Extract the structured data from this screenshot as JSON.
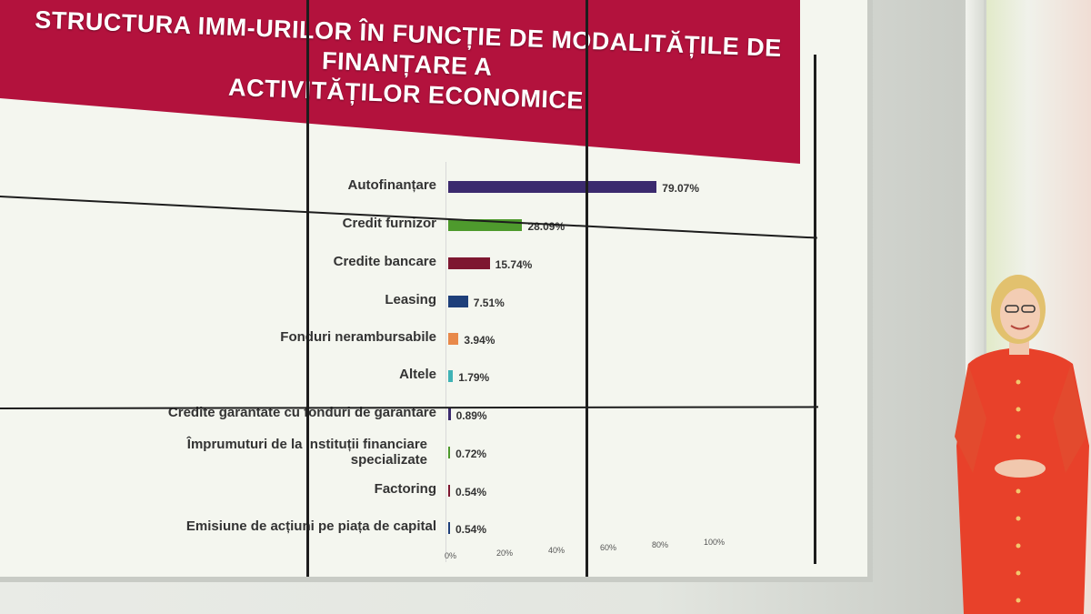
{
  "chart_data": {
    "type": "bar",
    "orientation": "horizontal",
    "title": "STRUCTURA IMM-URILOR ÎN FUNCȚIE DE MODALITĂȚILE DE FINANȚARE A ACTIVITĂȚILOR ECONOMICE",
    "title_lines": [
      "STRUCTURA IMM-URILOR ÎN FUNCȚIE DE MODALITĂȚILE DE FINANȚARE A",
      "ACTIVITĂȚILOR ECONOMICE"
    ],
    "categories": [
      "Autofinanțare",
      "Credit furnizor",
      "Credite bancare",
      "Leasing",
      "Fonduri nerambursabile",
      "Altele",
      "Credite garantate cu fonduri de garantare",
      "Împrumuturi de la instituții financiare specializate",
      "Factoring",
      "Emisiune de acțiuni pe piața de capital"
    ],
    "values": [
      79.07,
      28.09,
      15.74,
      7.51,
      3.94,
      1.79,
      0.89,
      0.72,
      0.54,
      0.54
    ],
    "value_labels": [
      "79.07%",
      "28.09%",
      "15.74%",
      "7.51%",
      "3.94%",
      "1.79%",
      "0.89%",
      "0.72%",
      "0.54%",
      "0.54%"
    ],
    "colors": [
      "#3b2a6e",
      "#4e9a2d",
      "#7e1730",
      "#1e3f7a",
      "#e8894a",
      "#3fb3b5",
      "#3b2a6e",
      "#4e9a2d",
      "#7e1730",
      "#1e3f7a"
    ],
    "xlim": [
      0,
      100
    ],
    "xticks": [
      "0%",
      "20%",
      "40%",
      "60%",
      "80%",
      "100%"
    ],
    "xlabel": "",
    "ylabel": ""
  }
}
